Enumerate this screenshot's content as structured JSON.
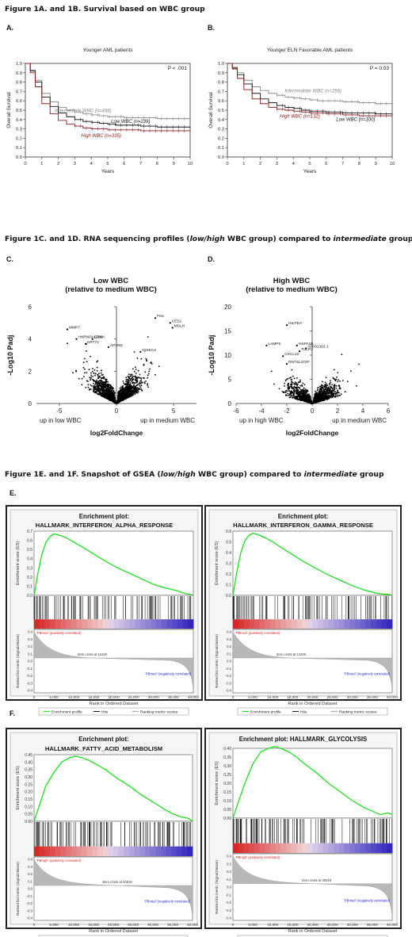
{
  "titles": {
    "ab": "Figure 1A. and 1B. Survival based on WBC group",
    "cd_prefix": "Figure 1C. and 1D. RNA sequencing profiles (",
    "cd_italic1": "low/high",
    "cd_mid": " WBC group) compared to ",
    "cd_italic2": "intermediate",
    "cd_suffix": " group",
    "ef_prefix": "Figure 1E. and 1F. Snapshot of GSEA (",
    "ef_italic1": "low/high",
    "ef_mid": " WBC group) compared to ",
    "ef_italic2": "intermediate",
    "ef_suffix": " group"
  },
  "letters": {
    "a": "A.",
    "b": "B.",
    "c": "C.",
    "d": "D.",
    "e": "E.",
    "f": "F."
  },
  "chart_data": [
    {
      "id": "A",
      "type": "line",
      "title": "Younger AML patients",
      "xlabel": "Years",
      "ylabel": "Overall Survival",
      "xlim": [
        0,
        10
      ],
      "ylim": [
        0,
        1.0
      ],
      "xticks": [
        0,
        1,
        2,
        3,
        4,
        5,
        6,
        7,
        8,
        9,
        10
      ],
      "yticks": [
        0.0,
        0.1,
        0.2,
        0.3,
        0.4,
        0.5,
        0.6,
        0.7,
        0.8,
        0.9,
        1.0
      ],
      "annotation": "P < .001",
      "series": [
        {
          "name": "Intermediate WBC (n=488)",
          "color": "#888888",
          "x": [
            0,
            0.3,
            0.6,
            1,
            1.5,
            2,
            2.5,
            3,
            3.5,
            4,
            4.5,
            5,
            5.5,
            6,
            7,
            8,
            9,
            10
          ],
          "y": [
            1.0,
            0.93,
            0.82,
            0.68,
            0.59,
            0.53,
            0.5,
            0.48,
            0.46,
            0.45,
            0.44,
            0.43,
            0.43,
            0.42,
            0.42,
            0.41,
            0.41,
            0.41
          ]
        },
        {
          "name": "Low WBC (n=239)",
          "color": "#111111",
          "x": [
            0,
            0.3,
            0.6,
            1,
            1.5,
            2,
            2.5,
            3,
            3.5,
            4,
            4.5,
            5,
            5.5,
            6,
            7,
            8,
            9,
            10
          ],
          "y": [
            1.0,
            0.92,
            0.8,
            0.64,
            0.54,
            0.47,
            0.43,
            0.4,
            0.38,
            0.37,
            0.36,
            0.35,
            0.34,
            0.34,
            0.33,
            0.32,
            0.32,
            0.31
          ]
        },
        {
          "name": "High WBC (n=335)",
          "color": "#8b1a1a",
          "x": [
            0,
            0.3,
            0.6,
            1,
            1.5,
            2,
            2.5,
            3,
            3.5,
            4,
            4.5,
            5,
            5.5,
            6,
            7,
            8,
            9,
            10
          ],
          "y": [
            1.0,
            0.9,
            0.75,
            0.57,
            0.46,
            0.39,
            0.35,
            0.33,
            0.31,
            0.3,
            0.3,
            0.29,
            0.29,
            0.29,
            0.28,
            0.28,
            0.28,
            0.27
          ]
        }
      ]
    },
    {
      "id": "B",
      "type": "line",
      "title": "Younger ELN Favorable AML patients",
      "xlabel": "Years",
      "ylabel": "Overall Survival",
      "xlim": [
        0,
        10
      ],
      "ylim": [
        0,
        1.0
      ],
      "xticks": [
        0,
        1,
        2,
        3,
        4,
        5,
        6,
        7,
        8,
        9,
        10
      ],
      "yticks": [
        0.0,
        0.1,
        0.2,
        0.3,
        0.4,
        0.5,
        0.6,
        0.7,
        0.8,
        0.9,
        1.0
      ],
      "annotation": "P = 0.03",
      "series": [
        {
          "name": "Intermediate WBC (n=256)",
          "color": "#888888",
          "x": [
            0,
            0.3,
            0.6,
            1,
            1.5,
            2,
            2.5,
            3,
            3.5,
            4,
            4.5,
            5,
            5.5,
            6,
            7,
            8,
            9,
            10
          ],
          "y": [
            1.0,
            0.96,
            0.9,
            0.82,
            0.75,
            0.71,
            0.68,
            0.66,
            0.64,
            0.63,
            0.62,
            0.61,
            0.6,
            0.6,
            0.59,
            0.58,
            0.57,
            0.57
          ]
        },
        {
          "name": "Low WBC (n=100)",
          "color": "#111111",
          "x": [
            0,
            0.3,
            0.6,
            1,
            1.5,
            2,
            2.5,
            3,
            3.5,
            4,
            4.5,
            5,
            5.5,
            6,
            7,
            8,
            9,
            10
          ],
          "y": [
            1.0,
            0.95,
            0.88,
            0.78,
            0.68,
            0.62,
            0.58,
            0.55,
            0.53,
            0.52,
            0.5,
            0.49,
            0.49,
            0.48,
            0.47,
            0.47,
            0.46,
            0.45
          ]
        },
        {
          "name": "High WBC (n=132)",
          "color": "#8b1a1a",
          "x": [
            0,
            0.3,
            0.6,
            1,
            1.5,
            2,
            2.5,
            3,
            3.5,
            4,
            4.5,
            5,
            5.5,
            6,
            7,
            8,
            9,
            10
          ],
          "y": [
            1.0,
            0.94,
            0.84,
            0.72,
            0.62,
            0.57,
            0.53,
            0.51,
            0.5,
            0.49,
            0.48,
            0.47,
            0.47,
            0.46,
            0.45,
            0.44,
            0.44,
            0.44
          ]
        }
      ]
    },
    {
      "id": "C",
      "type": "scatter",
      "title": "Low WBC\n(relative to medium WBC)",
      "title_line1": "Low WBC",
      "title_line2": "(relative to medium WBC)",
      "xlabel": "log2FoldChange",
      "ylabel": "-Log10 Padj",
      "xlim": [
        -7,
        7
      ],
      "ylim": [
        0,
        6
      ],
      "xticks": [
        -5,
        0,
        5
      ],
      "yticks": [
        0,
        2,
        4,
        6
      ],
      "bottom_left_label": "up in low WBC",
      "bottom_right_label": "up in medium WBC",
      "labeled_points": [
        {
          "label": "MMP7",
          "x": -4.3,
          "y": 4.6
        },
        {
          "label": "HNRNPA1P60",
          "x": -3.5,
          "y": 4.0
        },
        {
          "label": "GZMA",
          "x": -2.1,
          "y": 4.0
        },
        {
          "label": "KRT72",
          "x": -2.7,
          "y": 3.7
        },
        {
          "label": "AP3M2",
          "x": -0.7,
          "y": 3.5
        },
        {
          "label": "FN1",
          "x": 3.4,
          "y": 5.3
        },
        {
          "label": "CES1",
          "x": 4.7,
          "y": 5.0
        },
        {
          "label": "MSLN",
          "x": 4.9,
          "y": 4.7
        },
        {
          "label": "IQSEC2",
          "x": 2.1,
          "y": 3.2
        }
      ]
    },
    {
      "id": "D",
      "type": "scatter",
      "title": "High WBC\n(relative to medium WBC)",
      "title_line1": "High WBC",
      "title_line2": "(relative to medium WBC)",
      "xlabel": "log2FoldChange",
      "ylabel": "-Log10 Padj",
      "xlim": [
        -6,
        6
      ],
      "ylim": [
        0,
        20
      ],
      "xticks": [
        -6,
        -4,
        -2,
        0,
        2,
        4,
        6
      ],
      "yticks": [
        0,
        5,
        10,
        15,
        20
      ],
      "bottom_left_label": "up in high WBC",
      "bottom_right_label": "up in medium WBC",
      "labeled_points": [
        {
          "label": "HILPDA",
          "x": -2.0,
          "y": 16.2
        },
        {
          "label": "LAMP5",
          "x": -3.6,
          "y": 12.0
        },
        {
          "label": "HSPA1B",
          "x": -1.2,
          "y": 12.0
        },
        {
          "label": "AP001363.1",
          "x": -0.5,
          "y": 11.4
        },
        {
          "label": "TULP2",
          "x": -1.0,
          "y": 10.8
        },
        {
          "label": "CXCL10",
          "x": -2.3,
          "y": 9.8
        },
        {
          "label": "RN7SL472P",
          "x": -2.0,
          "y": 8.2
        }
      ]
    },
    {
      "id": "E1",
      "type": "line",
      "title_line1": "Enrichment plot:",
      "title_line2": "HALLMARK_INTERFERON_ALPHA_RESPONSE",
      "ylabel_top": "Enrichment score (ES)",
      "ylabel_bottom": "Ranked list metric (Signal2Noise)",
      "xlabel": "Rank in Ordered Dataset",
      "xlim": [
        0,
        40000
      ],
      "ylim": [
        0,
        0.7
      ],
      "xticks": [
        0,
        5000,
        10000,
        15000,
        20000,
        25000,
        30000,
        35000,
        40000
      ],
      "xtick_labels": [
        "0",
        "5,000",
        "10,000",
        "15,000",
        "20,000",
        "25,000",
        "30,000",
        "35,000",
        "40,000"
      ],
      "yticks": [
        0.0,
        0.1,
        0.2,
        0.3,
        0.4,
        0.5,
        0.6,
        0.7
      ],
      "ytick_labels": [
        "0.0",
        "0.1",
        "0.2",
        "0.3",
        "0.4",
        "0.5",
        "0.6",
        "0.7"
      ],
      "metric_yticks": [
        "0.4",
        "0.3",
        "0.2",
        "0.1",
        "0.0",
        "-0.1",
        "-0.2",
        "-0.3",
        "-0.4"
      ],
      "pos_label": "'PBmod' (positively correlated)",
      "neg_label": "'PBmed' (negatively correlated)",
      "zero_cross": "Zero cross at 14225",
      "zero_cross_x": 14225,
      "es_x": [
        0,
        1000,
        2000,
        3000,
        4000,
        5000,
        6000,
        8000,
        10000,
        12000,
        15000,
        18000,
        21000,
        24000,
        27000,
        30000,
        33000,
        36000,
        38000,
        39000,
        40000
      ],
      "es_y": [
        0.0,
        0.25,
        0.45,
        0.58,
        0.64,
        0.67,
        0.66,
        0.63,
        0.58,
        0.53,
        0.45,
        0.37,
        0.3,
        0.24,
        0.18,
        0.12,
        0.08,
        0.05,
        0.02,
        0.01,
        0.0
      ],
      "legend": [
        "Enrichment profile",
        "Hits",
        "Ranking metric scores"
      ]
    },
    {
      "id": "E2",
      "type": "line",
      "title_line1": "Enrichment plot:",
      "title_line2": "HALLMARK_INTERFERON_GAMMA_RESPONSE",
      "ylabel_top": "Enrichment score (ES)",
      "ylabel_bottom": "Ranked list metric (Signal2Noise)",
      "xlabel": "Rank in Ordered Dataset",
      "xlim": [
        0,
        40000
      ],
      "ylim": [
        0,
        0.6
      ],
      "xticks": [
        0,
        5000,
        10000,
        15000,
        20000,
        25000,
        30000,
        35000,
        40000
      ],
      "xtick_labels": [
        "0",
        "5,000",
        "10,000",
        "15,000",
        "20,000",
        "25,000",
        "30,000",
        "35,000",
        "40,000"
      ],
      "yticks": [
        0.0,
        0.1,
        0.2,
        0.3,
        0.4,
        0.5,
        0.6
      ],
      "ytick_labels": [
        "0.0",
        "0.1",
        "0.2",
        "0.3",
        "0.4",
        "0.5",
        "0.6"
      ],
      "metric_yticks": [
        "0.4",
        "0.3",
        "0.2",
        "0.1",
        "0.0",
        "-0.1",
        "-0.2",
        "-0.3",
        "-0.4"
      ],
      "pos_label": "'PBmod' (positively correlated)",
      "neg_label": "'PBmed' (negatively correlated)",
      "zero_cross": "Zero cross at 14225",
      "zero_cross_x": 14225,
      "es_x": [
        0,
        1000,
        2000,
        3000,
        4000,
        5000,
        6000,
        8000,
        10000,
        12000,
        15000,
        18000,
        21000,
        24000,
        27000,
        30000,
        33000,
        36000,
        38000,
        39000,
        40000
      ],
      "es_y": [
        0.0,
        0.22,
        0.4,
        0.51,
        0.56,
        0.58,
        0.57,
        0.54,
        0.5,
        0.45,
        0.38,
        0.31,
        0.25,
        0.19,
        0.14,
        0.09,
        0.05,
        0.02,
        0.01,
        0.01,
        0.0
      ],
      "legend": [
        "Enrichment profile",
        "Hits",
        "Ranking metric scores"
      ]
    },
    {
      "id": "F1",
      "type": "line",
      "title_line1": "Enrichment plot:",
      "title_line2": "HALLMARK_FATTY_ACID_METABOLISM",
      "ylabel_top": "Enrichment score (ES)",
      "ylabel_bottom": "Ranked list metric (Signal2Noise)",
      "xlabel": "Rank in Ordered Dataset",
      "xlim": [
        0,
        40000
      ],
      "ylim": [
        0,
        0.45
      ],
      "xticks": [
        0,
        5000,
        10000,
        15000,
        20000,
        25000,
        30000,
        35000,
        40000
      ],
      "xtick_labels": [
        "0",
        "5,000",
        "10,000",
        "15,000",
        "20,000",
        "25,000",
        "30,000",
        "35,000",
        "40,000"
      ],
      "yticks": [
        0.0,
        0.05,
        0.1,
        0.15,
        0.2,
        0.25,
        0.3,
        0.35,
        0.4,
        0.45
      ],
      "ytick_labels": [
        "0.00",
        "0.05",
        "0.10",
        "0.15",
        "0.20",
        "0.25",
        "0.30",
        "0.35",
        "0.40",
        "0.45"
      ],
      "metric_yticks": [
        "0.4",
        "0.3",
        "0.2",
        "0.1",
        "0.0",
        "-0.1",
        "-0.2",
        "-0.3",
        "-0.4"
      ],
      "pos_label": "'PBnigh' (positively correlated)",
      "neg_label": "'PBmed' (negatively correlated)",
      "zero_cross": "Zero cross at 20616",
      "zero_cross_x": 20616,
      "es_x": [
        0,
        1500,
        3000,
        5000,
        7000,
        9000,
        10500,
        12000,
        14000,
        16000,
        18000,
        21000,
        24000,
        27000,
        30000,
        33000,
        35000,
        37000,
        39000,
        40000
      ],
      "es_y": [
        0.0,
        0.12,
        0.24,
        0.33,
        0.4,
        0.43,
        0.44,
        0.43,
        0.41,
        0.38,
        0.35,
        0.29,
        0.24,
        0.18,
        0.13,
        0.08,
        0.05,
        0.03,
        0.02,
        0.0
      ],
      "legend": [
        "Enrichment profile",
        "Hits",
        "Ranking metric scores"
      ]
    },
    {
      "id": "F2",
      "type": "line",
      "title_line1": "Enrichment plot: HALLMARK_GLYCOLYSIS",
      "title_line2": "",
      "ylabel_top": "Enrichment score (ES)",
      "ylabel_bottom": "Ranked list metric (Signal2Noise)",
      "xlabel": "Rank in Ordered Dataset",
      "xlim": [
        0,
        40000
      ],
      "ylim": [
        0,
        0.4
      ],
      "xticks": [
        0,
        5000,
        10000,
        15000,
        20000,
        25000,
        30000,
        35000,
        40000
      ],
      "xtick_labels": [
        "0",
        "5,000",
        "10,000",
        "15,000",
        "20,000",
        "25,000",
        "30,000",
        "35,000",
        "40,000"
      ],
      "yticks": [
        0.0,
        0.05,
        0.1,
        0.15,
        0.2,
        0.25,
        0.3,
        0.35,
        0.4
      ],
      "ytick_labels": [
        "0.00",
        "0.05",
        "0.10",
        "0.15",
        "0.20",
        "0.25",
        "0.30",
        "0.35",
        "0.40"
      ],
      "metric_yticks": [
        "0.4",
        "0.3",
        "0.2",
        "0.1",
        "0.0",
        "-0.1",
        "-0.2",
        "-0.3",
        "-0.4"
      ],
      "pos_label": "'PBnigh' (positively correlated)",
      "neg_label": "'PBmed' (negatively correlated)",
      "zero_cross": "Zero cross at 20616",
      "zero_cross_x": 20616,
      "es_x": [
        0,
        1500,
        3000,
        5000,
        7000,
        9000,
        10500,
        12000,
        14000,
        16000,
        18000,
        21000,
        24000,
        27000,
        30000,
        33000,
        35000,
        37000,
        39000,
        40000
      ],
      "es_y": [
        0.0,
        0.1,
        0.2,
        0.31,
        0.38,
        0.4,
        0.41,
        0.4,
        0.38,
        0.35,
        0.31,
        0.26,
        0.2,
        0.15,
        0.1,
        0.06,
        0.04,
        0.02,
        0.03,
        0.02
      ],
      "legend": [
        "Enrichment profile",
        "Hits",
        "Ranking metric scores"
      ]
    }
  ]
}
